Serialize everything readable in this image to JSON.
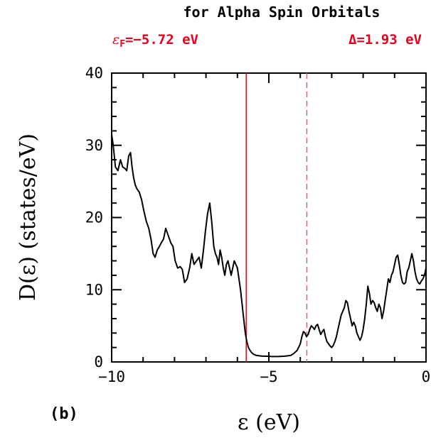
{
  "chart_data": {
    "type": "line",
    "title": "for Alpha Spin Orbitals",
    "fermi_label": "ε",
    "fermi_label_sub": "F",
    "fermi_label_value": "=−5.72 eV",
    "gap_label": "Δ=1.93 eV",
    "panel_label": "(b)",
    "xlabel": "ε (eV)",
    "ylabel": "D(ε) (states/eV)",
    "xlim": [
      -10,
      0
    ],
    "ylim": [
      0,
      40
    ],
    "xticks": [
      -10,
      -5,
      0
    ],
    "xtick_labels": [
      "−10",
      "−5",
      "0"
    ],
    "yticks": [
      0,
      10,
      20,
      30,
      40
    ],
    "ytick_labels": [
      "0",
      "10",
      "20",
      "30",
      "40"
    ],
    "grid": false,
    "accent_color": "#e8001c",
    "dashed_color": "#e06070",
    "fermi_level": -5.72,
    "gap_edge": -3.79,
    "series": [
      {
        "x": [
          -10.0,
          -9.95,
          -9.88,
          -9.8,
          -9.72,
          -9.65,
          -9.58,
          -9.52,
          -9.46,
          -9.4,
          -9.35,
          -9.3,
          -9.25,
          -9.2,
          -9.12,
          -9.05,
          -8.98,
          -8.9,
          -8.82,
          -8.75,
          -8.68,
          -8.62,
          -8.55,
          -8.48,
          -8.42,
          -8.35,
          -8.28,
          -8.2,
          -8.12,
          -8.05,
          -7.98,
          -7.9,
          -7.82,
          -7.75,
          -7.68,
          -7.6,
          -7.52,
          -7.45,
          -7.38,
          -7.3,
          -7.22,
          -7.15,
          -7.08,
          -7.02,
          -6.95,
          -6.88,
          -6.82,
          -6.75,
          -6.7,
          -6.65,
          -6.6,
          -6.55,
          -6.5,
          -6.45,
          -6.4,
          -6.35,
          -6.3,
          -6.25,
          -6.2,
          -6.15,
          -6.1,
          -6.05,
          -6.0,
          -5.95,
          -5.9,
          -5.85,
          -5.8,
          -5.75,
          -5.7,
          -5.65,
          -5.6,
          -5.55,
          -5.5,
          -5.45,
          -5.4,
          -5.3,
          -5.2,
          -5.1,
          -5.0,
          -4.9,
          -4.8,
          -4.7,
          -4.6,
          -4.5,
          -4.4,
          -4.3,
          -4.2,
          -4.1,
          -4.0,
          -3.95,
          -3.9,
          -3.85,
          -3.8,
          -3.75,
          -3.7,
          -3.65,
          -3.6,
          -3.55,
          -3.5,
          -3.45,
          -3.4,
          -3.35,
          -3.3,
          -3.25,
          -3.2,
          -3.15,
          -3.1,
          -3.05,
          -3.0,
          -2.95,
          -2.9,
          -2.85,
          -2.8,
          -2.75,
          -2.7,
          -2.65,
          -2.6,
          -2.55,
          -2.5,
          -2.45,
          -2.4,
          -2.35,
          -2.3,
          -2.25,
          -2.2,
          -2.15,
          -2.1,
          -2.05,
          -2.0,
          -1.95,
          -1.9,
          -1.85,
          -1.8,
          -1.75,
          -1.7,
          -1.65,
          -1.6,
          -1.55,
          -1.5,
          -1.45,
          -1.4,
          -1.35,
          -1.3,
          -1.25,
          -1.2,
          -1.15,
          -1.1,
          -1.05,
          -1.0,
          -0.95,
          -0.9,
          -0.85,
          -0.8,
          -0.75,
          -0.7,
          -0.65,
          -0.6,
          -0.55,
          -0.5,
          -0.45,
          -0.4,
          -0.35,
          -0.3,
          -0.25,
          -0.2,
          -0.15,
          -0.1,
          -0.05,
          0.0
        ],
        "y": [
          31.5,
          30.0,
          27.0,
          26.5,
          28.0,
          27.0,
          26.8,
          26.5,
          28.5,
          29.0,
          27.0,
          25.5,
          24.5,
          24.0,
          23.5,
          22.5,
          21.0,
          19.5,
          18.5,
          17.0,
          15.0,
          14.5,
          15.5,
          16.0,
          16.5,
          17.0,
          18.5,
          17.5,
          16.5,
          16.0,
          14.0,
          13.0,
          13.2,
          12.8,
          11.0,
          11.5,
          13.0,
          15.0,
          13.5,
          14.0,
          14.5,
          13.0,
          15.5,
          18.0,
          20.5,
          22.0,
          19.5,
          16.0,
          15.0,
          14.5,
          13.5,
          15.5,
          14.5,
          13.0,
          12.0,
          13.5,
          14.0,
          13.0,
          12.0,
          13.0,
          14.0,
          13.5,
          13.0,
          11.5,
          10.0,
          8.0,
          6.0,
          4.0,
          2.8,
          2.0,
          1.6,
          1.3,
          1.1,
          1.0,
          0.9,
          0.85,
          0.8,
          0.8,
          0.78,
          0.75,
          0.75,
          0.75,
          0.78,
          0.8,
          0.85,
          0.9,
          1.2,
          1.6,
          2.5,
          3.5,
          4.2,
          4.0,
          3.5,
          3.8,
          4.5,
          5.0,
          4.8,
          4.5,
          5.0,
          5.2,
          4.5,
          3.8,
          4.2,
          4.5,
          3.5,
          2.8,
          2.5,
          2.2,
          2.0,
          2.3,
          2.8,
          3.5,
          4.5,
          5.5,
          6.5,
          7.0,
          7.5,
          8.5,
          8.2,
          7.0,
          6.0,
          5.0,
          5.5,
          5.0,
          4.0,
          3.5,
          3.0,
          3.5,
          4.5,
          6.0,
          8.0,
          10.5,
          9.5,
          8.0,
          8.5,
          8.2,
          7.5,
          7.0,
          8.0,
          7.5,
          6.0,
          7.0,
          8.5,
          10.0,
          11.5,
          11.0,
          12.0,
          12.5,
          13.5,
          14.5,
          14.8,
          13.5,
          12.0,
          11.0,
          10.8,
          11.0,
          12.5,
          13.0,
          14.0,
          15.0,
          14.0,
          12.5,
          11.5,
          11.0,
          10.8,
          11.2,
          11.5,
          12.0,
          13.0
        ]
      }
    ]
  }
}
